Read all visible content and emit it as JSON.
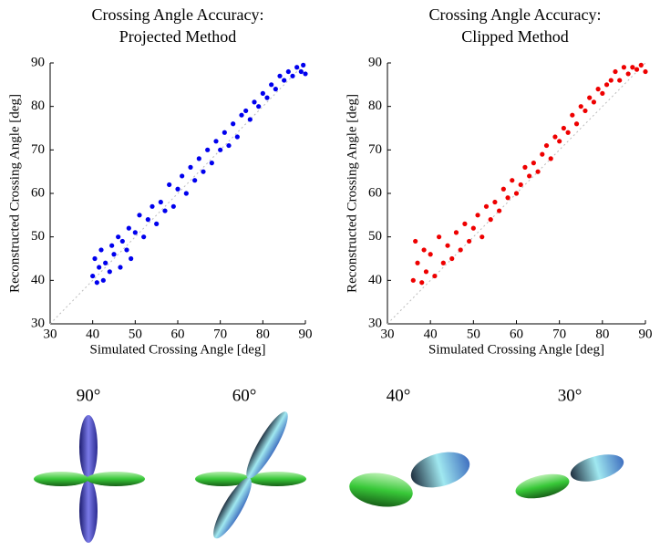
{
  "chart_data": [
    {
      "type": "scatter",
      "title": "Crossing Angle Accuracy:",
      "subtitle": "Projected Method",
      "x_label": "Simulated Crossing Angle [deg]",
      "y_label": "Reconstructed Crossing Angle [deg]",
      "color": "#0000ee",
      "identity_line": true,
      "xlim": [
        30,
        90
      ],
      "ylim": [
        30,
        90
      ],
      "xticks": [
        30,
        40,
        50,
        60,
        70,
        80,
        90
      ],
      "yticks": [
        30,
        40,
        50,
        60,
        70,
        80,
        90
      ],
      "x": [
        40,
        40.5,
        41,
        41.5,
        42,
        42.5,
        43,
        44,
        44.5,
        45,
        46,
        46.5,
        47,
        48,
        48.5,
        49,
        50,
        51,
        52,
        53,
        54,
        55,
        56,
        57,
        58,
        59,
        60,
        61,
        62,
        63,
        64,
        65,
        66,
        67,
        68,
        69,
        70,
        71,
        72,
        73,
        74,
        75,
        76,
        77,
        78,
        79,
        80,
        81,
        82,
        83,
        84,
        85,
        86,
        87,
        88,
        89,
        89.5,
        90
      ],
      "values": [
        41,
        45,
        39.5,
        43,
        47,
        40,
        44,
        42,
        48,
        46,
        50,
        43,
        49,
        47,
        52,
        45,
        51,
        55,
        50,
        54,
        57,
        53,
        58,
        56,
        62,
        57,
        61,
        64,
        60,
        66,
        63,
        68,
        65,
        70,
        67,
        72,
        70,
        74,
        71,
        76,
        73,
        78,
        79,
        77,
        81,
        80,
        83,
        82,
        85,
        84,
        87,
        86,
        88,
        87,
        89,
        88,
        89.5,
        87.5
      ]
    },
    {
      "type": "scatter",
      "title": "Crossing Angle Accuracy:",
      "subtitle": "Clipped Method",
      "x_label": "Simulated Crossing Angle [deg]",
      "y_label": "Reconstructed Crossing Angle [deg]",
      "color": "#ee0000",
      "identity_line": true,
      "xlim": [
        30,
        90
      ],
      "ylim": [
        30,
        90
      ],
      "xticks": [
        30,
        40,
        50,
        60,
        70,
        80,
        90
      ],
      "yticks": [
        30,
        40,
        50,
        60,
        70,
        80,
        90
      ],
      "x": [
        36,
        36.5,
        37,
        38,
        38.5,
        39,
        40,
        41,
        42,
        43,
        44,
        45,
        46,
        47,
        48,
        49,
        50,
        51,
        52,
        53,
        54,
        55,
        56,
        57,
        58,
        59,
        60,
        61,
        62,
        63,
        64,
        65,
        66,
        67,
        68,
        69,
        70,
        71,
        72,
        73,
        74,
        75,
        76,
        77,
        78,
        79,
        80,
        81,
        82,
        83,
        84,
        85,
        86,
        87,
        88,
        89,
        90
      ],
      "values": [
        40,
        49,
        44,
        39.5,
        47,
        42,
        46,
        41,
        50,
        44,
        48,
        45,
        51,
        47,
        53,
        49,
        52,
        55,
        50,
        57,
        54,
        58,
        56,
        61,
        59,
        63,
        60,
        62,
        66,
        64,
        67,
        65,
        69,
        71,
        68,
        73,
        72,
        75,
        74,
        78,
        76,
        80,
        79,
        82,
        81,
        84,
        83,
        85,
        86,
        88,
        86,
        89,
        87.5,
        89,
        88.5,
        89.5,
        88
      ]
    }
  ],
  "glyphs": [
    {
      "label": "90°"
    },
    {
      "label": "60°"
    },
    {
      "label": "40°"
    },
    {
      "label": "30°"
    }
  ]
}
